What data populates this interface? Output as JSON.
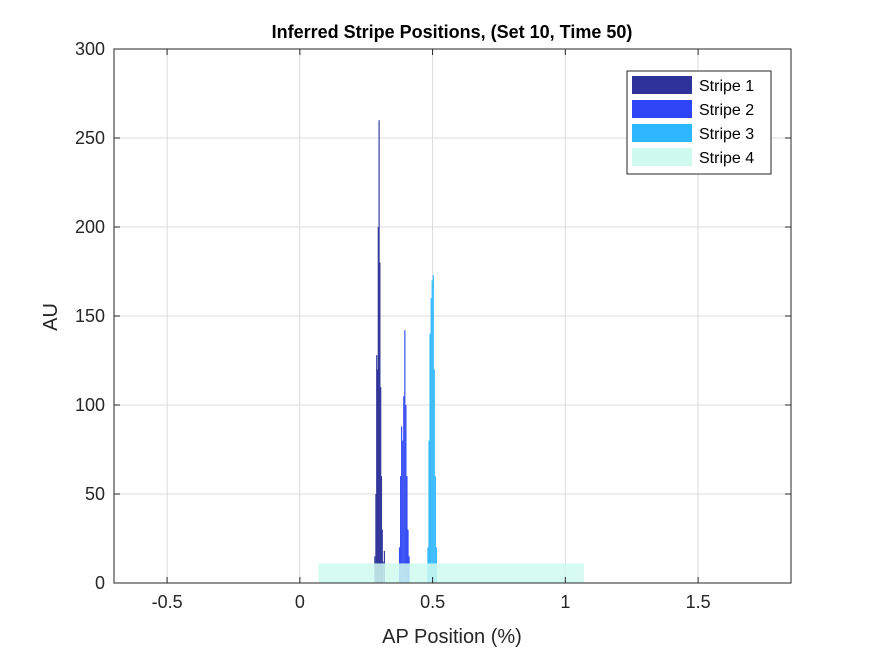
{
  "chart_data": {
    "type": "histogram",
    "title": "Inferred Stripe Positions,  (Set 10, Time 50)",
    "xlabel": "AP Position (%)",
    "ylabel": "AU",
    "xlim": [
      -0.7,
      1.85
    ],
    "ylim": [
      0,
      300
    ],
    "xticks": [
      -0.5,
      0,
      0.5,
      1,
      1.5
    ],
    "xtick_labels": [
      "-0.5",
      "0",
      "0.5",
      "1",
      "1.5"
    ],
    "yticks": [
      0,
      50,
      100,
      150,
      200,
      250,
      300
    ],
    "ytick_labels": [
      "0",
      "50",
      "100",
      "150",
      "200",
      "250",
      "300"
    ],
    "grid": true,
    "legend_position": "top-right",
    "series": [
      {
        "name": "Stripe 1",
        "color": "#2e3399",
        "bars": [
          {
            "x": 0.282,
            "y": 15
          },
          {
            "x": 0.286,
            "y": 50
          },
          {
            "x": 0.289,
            "y": 128
          },
          {
            "x": 0.292,
            "y": 120
          },
          {
            "x": 0.295,
            "y": 200
          },
          {
            "x": 0.298,
            "y": 260
          },
          {
            "x": 0.301,
            "y": 180
          },
          {
            "x": 0.304,
            "y": 110
          },
          {
            "x": 0.307,
            "y": 60
          },
          {
            "x": 0.31,
            "y": 30
          },
          {
            "x": 0.313,
            "y": 12
          },
          {
            "x": 0.318,
            "y": 18
          }
        ]
      },
      {
        "name": "Stripe 2",
        "color": "#2d45f5",
        "bars": [
          {
            "x": 0.375,
            "y": 20
          },
          {
            "x": 0.379,
            "y": 60
          },
          {
            "x": 0.383,
            "y": 88
          },
          {
            "x": 0.387,
            "y": 80
          },
          {
            "x": 0.391,
            "y": 105
          },
          {
            "x": 0.395,
            "y": 142
          },
          {
            "x": 0.399,
            "y": 100
          },
          {
            "x": 0.403,
            "y": 60
          },
          {
            "x": 0.407,
            "y": 30
          },
          {
            "x": 0.411,
            "y": 15
          }
        ]
      },
      {
        "name": "Stripe 3",
        "color": "#2eb7ff",
        "bars": [
          {
            "x": 0.482,
            "y": 20
          },
          {
            "x": 0.486,
            "y": 80
          },
          {
            "x": 0.49,
            "y": 140
          },
          {
            "x": 0.494,
            "y": 160
          },
          {
            "x": 0.498,
            "y": 170
          },
          {
            "x": 0.502,
            "y": 173
          },
          {
            "x": 0.506,
            "y": 120
          },
          {
            "x": 0.51,
            "y": 60
          },
          {
            "x": 0.514,
            "y": 20
          }
        ]
      },
      {
        "name": "Stripe 4",
        "color": "#cffaee",
        "bars": [
          {
            "x": 0.57,
            "width": 1.0,
            "y": 11
          }
        ]
      }
    ]
  }
}
